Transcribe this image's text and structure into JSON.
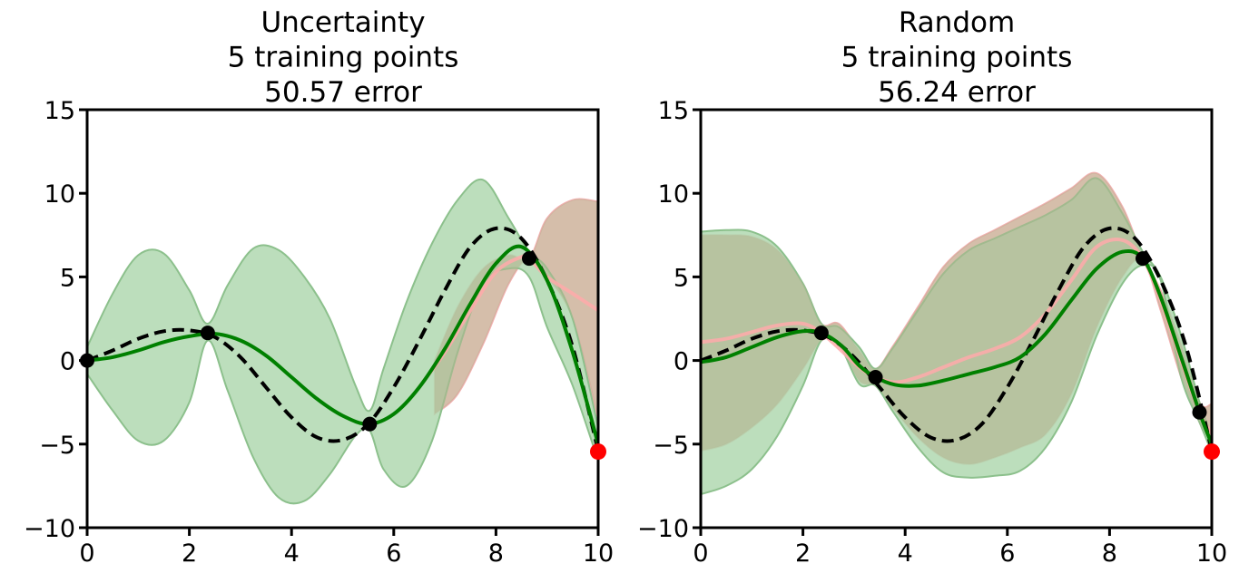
{
  "chart_data": [
    {
      "type": "line",
      "title_lines": [
        "Uncertainty",
        "5 training points",
        "50.57 error"
      ],
      "xlim": [
        0,
        10
      ],
      "ylim": [
        -10,
        15
      ],
      "xticks": [
        0,
        2,
        4,
        6,
        8,
        10
      ],
      "yticks": [
        -10,
        -5,
        0,
        5,
        10,
        15
      ],
      "xtick_labels": [
        "0",
        "2",
        "4",
        "6",
        "8",
        "10"
      ],
      "ytick_labels": [
        "−10",
        "−5",
        "0",
        "5",
        "10",
        "15"
      ],
      "grid": false,
      "colors": {
        "true_function": "#000000",
        "mean_green": "#008000",
        "band_green": "#b0d8b0",
        "mean_red": "#ffaaaa",
        "band_red": "#ffcaca",
        "overlap": "#b2b490",
        "new_point": "#ff0000",
        "train_point": "#000000"
      },
      "true_function": {
        "x": [
          0,
          0.5,
          1,
          1.5,
          2,
          2.5,
          3,
          3.5,
          4,
          4.5,
          5,
          5.5,
          6,
          6.5,
          7,
          7.5,
          8,
          8.5,
          9,
          9.5,
          10
        ],
        "y": [
          0,
          0.6,
          1.3,
          1.75,
          1.8,
          1.4,
          0.2,
          -1.6,
          -3.4,
          -4.6,
          -4.75,
          -3.8,
          -1.6,
          1.2,
          4.2,
          6.8,
          7.9,
          7.3,
          4.8,
          0.8,
          -5.4
        ]
      },
      "mean": {
        "x": [
          0,
          0.5,
          1,
          1.5,
          2,
          2.5,
          3,
          3.5,
          4,
          4.5,
          5,
          5.5,
          6,
          6.5,
          7,
          7.5,
          8,
          8.5,
          9,
          9.5,
          10
        ],
        "y": [
          0,
          0.2,
          0.6,
          1.1,
          1.45,
          1.6,
          1.2,
          0.3,
          -1.0,
          -2.3,
          -3.3,
          -3.8,
          -3.2,
          -1.6,
          0.7,
          3.4,
          5.8,
          6.8,
          4.8,
          0.5,
          -5.0
        ]
      },
      "band": {
        "x": [
          0,
          0.5,
          1,
          1.5,
          2,
          2.36,
          2.75,
          3.25,
          3.75,
          4.25,
          4.75,
          5.25,
          5.53,
          5.8,
          6.25,
          6.75,
          7.25,
          7.75,
          8.25,
          8.65,
          9.0,
          9.5,
          10
        ],
        "upper": [
          0.8,
          4.0,
          6.3,
          6.4,
          4.2,
          2.2,
          4.5,
          6.7,
          6.6,
          5.0,
          2.5,
          -1.5,
          -3.0,
          -0.5,
          3.5,
          7.0,
          9.6,
          10.8,
          8.5,
          6.5,
          5.5,
          2.5,
          -4.0
        ],
        "lower": [
          -0.8,
          -3.0,
          -4.8,
          -4.8,
          -2.5,
          1.2,
          -1.8,
          -5.8,
          -8.2,
          -8.4,
          -6.8,
          -4.5,
          -4.2,
          -6.5,
          -7.5,
          -4.8,
          0.5,
          4.6,
          5.5,
          5.0,
          2.0,
          -1.5,
          -6.0
        ]
      },
      "previous_mean": {
        "x": [
          6.5,
          7,
          7.5,
          8,
          8.5,
          8.65,
          9,
          9.5,
          10
        ],
        "y": [
          -1.6,
          0.5,
          3.0,
          5.3,
          6.2,
          6.1,
          5.0,
          4.0,
          3.0
        ]
      },
      "previous_band": {
        "x": [
          6.8,
          7.25,
          7.75,
          8.25,
          8.65,
          9.0,
          9.5,
          10
        ],
        "upper": [
          0.0,
          3.2,
          5.5,
          6.3,
          6.1,
          8.5,
          9.6,
          9.5
        ],
        "lower": [
          -3.2,
          -2.0,
          1.0,
          4.6,
          6.1,
          5.0,
          2.5,
          -3.5
        ]
      },
      "train_points": {
        "x": [
          0,
          2.36,
          5.53,
          8.65
        ],
        "y": [
          0,
          1.65,
          -3.8,
          6.1
        ]
      },
      "new_point": {
        "x": [
          10
        ],
        "y": [
          -5.45
        ]
      }
    },
    {
      "type": "line",
      "title_lines": [
        "Random",
        "5 training points",
        "56.24 error"
      ],
      "xlim": [
        0,
        10
      ],
      "ylim": [
        -10,
        15
      ],
      "xticks": [
        0,
        2,
        4,
        6,
        8,
        10
      ],
      "yticks": [
        -10,
        -5,
        0,
        5,
        10,
        15
      ],
      "xtick_labels": [
        "0",
        "2",
        "4",
        "6",
        "8",
        "10"
      ],
      "ytick_labels": [
        "−10",
        "−5",
        "0",
        "5",
        "10",
        "15"
      ],
      "grid": false,
      "colors": {
        "true_function": "#000000",
        "mean_green": "#008000",
        "band_green": "#b0d8b0",
        "mean_red": "#ffaaaa",
        "band_red": "#ffcaca",
        "overlap": "#b2b490",
        "new_point": "#ff0000",
        "train_point": "#000000"
      },
      "true_function": {
        "x": [
          0,
          0.5,
          1,
          1.5,
          2,
          2.5,
          3,
          3.5,
          4,
          4.5,
          5,
          5.5,
          6,
          6.5,
          7,
          7.5,
          8,
          8.5,
          9,
          9.5,
          10
        ],
        "y": [
          0,
          0.6,
          1.3,
          1.75,
          1.8,
          1.4,
          0.2,
          -1.6,
          -3.4,
          -4.6,
          -4.75,
          -3.8,
          -1.6,
          1.2,
          4.2,
          6.8,
          7.9,
          7.3,
          4.8,
          0.8,
          -5.4
        ]
      },
      "mean": {
        "x": [
          0,
          0.5,
          1,
          1.5,
          2,
          2.36,
          2.75,
          3.1,
          3.42,
          3.8,
          4.25,
          4.75,
          5.25,
          5.75,
          6.25,
          6.75,
          7.25,
          7.75,
          8.25,
          8.65,
          9.0,
          9.4,
          9.76,
          10
        ],
        "y": [
          -0.1,
          0.2,
          0.8,
          1.4,
          1.75,
          1.65,
          0.9,
          -0.3,
          -1.0,
          -1.45,
          -1.5,
          -1.2,
          -0.8,
          -0.4,
          0.2,
          1.6,
          3.6,
          5.5,
          6.5,
          6.1,
          3.8,
          0.2,
          -3.1,
          -5.0
        ]
      },
      "band": {
        "x": [
          0,
          0.5,
          1,
          1.5,
          2,
          2.36,
          2.7,
          3.1,
          3.42,
          3.75,
          4.25,
          4.75,
          5.25,
          5.75,
          6.25,
          6.75,
          7.25,
          7.75,
          8.25,
          8.65,
          9.0,
          9.4,
          9.76,
          10
        ],
        "upper": [
          7.7,
          7.8,
          7.7,
          6.8,
          4.6,
          2.2,
          2.0,
          0.8,
          -0.5,
          0.7,
          3.0,
          5.2,
          6.6,
          7.3,
          8.0,
          8.7,
          9.6,
          10.9,
          8.8,
          6.5,
          5.0,
          1.5,
          -2.5,
          -4.5
        ],
        "lower": [
          -8.0,
          -7.5,
          -6.5,
          -4.5,
          -1.5,
          1.2,
          1.0,
          -1.4,
          -1.5,
          -3.0,
          -5.2,
          -6.7,
          -7.0,
          -6.9,
          -6.6,
          -5.2,
          -2.5,
          1.5,
          4.6,
          5.7,
          4.8,
          -1.0,
          -3.7,
          -5.5
        ]
      },
      "previous_mean": {
        "x": [
          0,
          0.5,
          1,
          1.5,
          2,
          2.36,
          2.75,
          3.1,
          3.42,
          3.8,
          4.25,
          4.75,
          5.25,
          5.75,
          6.25,
          6.75,
          7.25,
          7.75,
          8.25,
          8.65,
          9.0,
          9.4,
          9.76,
          10
        ],
        "y": [
          1.1,
          1.3,
          1.7,
          2.1,
          2.2,
          1.65,
          0.6,
          -0.4,
          -1.0,
          -1.3,
          -1.0,
          -0.4,
          0.2,
          0.7,
          1.4,
          2.8,
          4.8,
          6.8,
          7.2,
          6.1,
          3.6,
          0.0,
          -3.1,
          -4.4
        ]
      },
      "previous_band": {
        "x": [
          0,
          0.5,
          1,
          1.5,
          2,
          2.36,
          2.7,
          3.1,
          3.42,
          3.75,
          4.25,
          4.75,
          5.25,
          5.75,
          6.25,
          6.75,
          7.25,
          7.75,
          8.25,
          8.65,
          9.0,
          9.4,
          9.76,
          10
        ],
        "upper": [
          7.5,
          7.5,
          7.4,
          6.6,
          4.6,
          2.2,
          2.2,
          0.6,
          -0.5,
          0.8,
          3.2,
          5.6,
          7.0,
          7.8,
          8.6,
          9.4,
          10.3,
          11.2,
          9.2,
          6.2,
          4.2,
          1.0,
          -2.5,
          -2.6
        ],
        "lower": [
          -5.4,
          -5.0,
          -4.0,
          -2.6,
          -0.5,
          1.2,
          1.0,
          -1.2,
          -1.5,
          -2.8,
          -4.6,
          -5.8,
          -6.2,
          -5.8,
          -5.2,
          -4.4,
          -2.0,
          2.0,
          5.0,
          6.0,
          3.0,
          -1.0,
          -3.7,
          -5.0
        ]
      },
      "train_points": {
        "x": [
          2.36,
          3.42,
          8.65,
          9.76
        ],
        "y": [
          1.65,
          -1.0,
          6.1,
          -3.1
        ]
      },
      "new_point": {
        "x": [
          10
        ],
        "y": [
          -5.45
        ]
      }
    }
  ]
}
